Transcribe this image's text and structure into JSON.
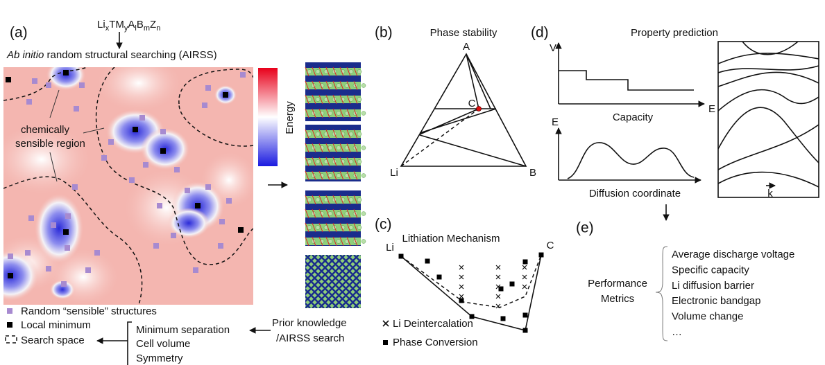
{
  "panel_a": {
    "label": "(a)",
    "formula": [
      {
        "base": "Li",
        "sub": "x"
      },
      {
        "base": "TM",
        "sub": "y"
      },
      {
        "base": "A",
        "sub": "l"
      },
      {
        "base": "B",
        "sub": "m"
      },
      {
        "base": "Z",
        "sub": "n"
      }
    ],
    "method_italic": "Ab initio",
    "method": "random structural searching (AIRSS)",
    "region_label": [
      "chemically",
      "sensible region"
    ],
    "colorbar_label": "Energy",
    "legend": [
      "Random “sensible” structures",
      "Local minimum",
      "Search space"
    ],
    "constraints": [
      "Minimum separation",
      "Cell volume",
      "Symmetry"
    ],
    "prior": [
      "Prior knowledge",
      "/AIRSS search"
    ]
  },
  "panel_b": {
    "label": "(b)",
    "title": "Phase stability",
    "vertices": [
      "A",
      "C",
      "Li",
      "B"
    ]
  },
  "panel_c": {
    "label": "(c)",
    "title": "Lithiation Mechanism",
    "end_labels": [
      "Li",
      "C"
    ],
    "legend": [
      "Li Deintercalation",
      "Phase Conversion"
    ]
  },
  "panel_d": {
    "label": "(d)",
    "title": "Property prediction",
    "voltage_plot": {
      "y_label": "V",
      "x_label": "Capacity"
    },
    "diffusion_plot": {
      "y_label": "E",
      "x_label": "Diffusion coordinate"
    },
    "band_plot": {
      "y_label": "E",
      "x_label": "k"
    }
  },
  "panel_e": {
    "label": "(e)",
    "heading": [
      "Performance",
      "Metrics"
    ],
    "metrics": [
      "Average discharge voltage",
      "Specific capacity",
      "Li diffusion barrier",
      "Electronic bandgap",
      "Volume change",
      "…"
    ]
  }
}
